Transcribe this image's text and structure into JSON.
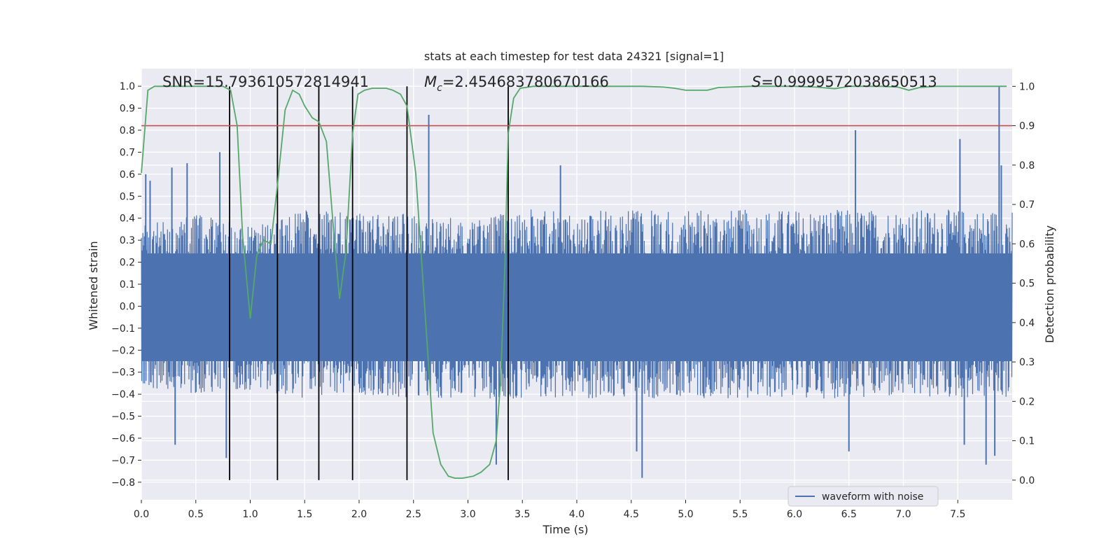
{
  "chart_data": {
    "type": "line",
    "title": "stats at each timestep for test data 24321 [signal=1]",
    "xlabel": "Time (s)",
    "ylabel": "Whitened strain",
    "y2label": "Detection probability",
    "xlim": [
      0.0,
      8.0
    ],
    "ylim": [
      -0.88,
      1.08
    ],
    "y2lim": [
      -0.05,
      1.045
    ],
    "x_ticks": [
      "0.0",
      "0.5",
      "1.0",
      "1.5",
      "2.0",
      "2.5",
      "3.0",
      "3.5",
      "4.0",
      "4.5",
      "5.0",
      "5.5",
      "6.0",
      "6.5",
      "7.0",
      "7.5"
    ],
    "y_ticks": [
      "1.0",
      "0.9",
      "0.8",
      "0.7",
      "0.6",
      "0.5",
      "0.4",
      "0.3",
      "0.2",
      "0.1",
      "0.0",
      "−0.1",
      "−0.2",
      "−0.3",
      "−0.4",
      "−0.5",
      "−0.6",
      "−0.7",
      "−0.8"
    ],
    "y2_ticks": [
      "1.0",
      "0.9",
      "0.8",
      "0.7",
      "0.6",
      "0.5",
      "0.4",
      "0.3",
      "0.2",
      "0.1",
      "0.0"
    ],
    "grid": true,
    "legend": {
      "placement": "lower-right",
      "entries": [
        "waveform with noise"
      ]
    },
    "annotations": {
      "snr": "SNR=15.793610572814941",
      "mc_symbol": "M",
      "mc_sub": "c",
      "mc_value": "=2.454683780670166",
      "s_symbol": "S",
      "s_value": "=0.9999572038650513"
    },
    "threshold": {
      "value": 0.9,
      "axis": "right"
    },
    "vertical_markers": [
      0.81,
      1.25,
      1.63,
      1.94,
      2.44,
      3.37
    ],
    "waveform": {
      "name": "waveform with noise",
      "envelope_upper": [
        [
          0.0,
          0.38
        ],
        [
          0.5,
          0.42
        ],
        [
          1.0,
          0.36
        ],
        [
          1.5,
          0.44
        ],
        [
          2.0,
          0.42
        ],
        [
          2.5,
          0.42
        ],
        [
          3.0,
          0.4
        ],
        [
          3.5,
          0.44
        ],
        [
          4.0,
          0.44
        ],
        [
          4.5,
          0.44
        ],
        [
          5.0,
          0.44
        ],
        [
          5.5,
          0.44
        ],
        [
          6.0,
          0.44
        ],
        [
          6.5,
          0.44
        ],
        [
          7.0,
          0.44
        ],
        [
          7.5,
          0.44
        ],
        [
          8.0,
          0.44
        ]
      ],
      "envelope_lower": [
        [
          0.0,
          -0.37
        ],
        [
          0.5,
          -0.4
        ],
        [
          1.0,
          -0.38
        ],
        [
          1.5,
          -0.42
        ],
        [
          2.0,
          -0.4
        ],
        [
          2.5,
          -0.42
        ],
        [
          3.0,
          -0.42
        ],
        [
          3.5,
          -0.42
        ],
        [
          4.0,
          -0.42
        ],
        [
          4.5,
          -0.42
        ],
        [
          5.0,
          -0.42
        ],
        [
          5.5,
          -0.42
        ],
        [
          6.0,
          -0.42
        ],
        [
          6.5,
          -0.42
        ],
        [
          7.0,
          -0.42
        ],
        [
          7.5,
          -0.42
        ],
        [
          8.0,
          -0.42
        ]
      ],
      "notable_spikes": [
        {
          "x": 0.04,
          "y": 0.6
        },
        {
          "x": 0.08,
          "y": 0.57
        },
        {
          "x": 0.28,
          "y": 0.63
        },
        {
          "x": 0.42,
          "y": 0.65
        },
        {
          "x": 0.72,
          "y": 0.7
        },
        {
          "x": 0.78,
          "y": -0.69
        },
        {
          "x": 2.64,
          "y": 0.87
        },
        {
          "x": 3.26,
          "y": -0.72
        },
        {
          "x": 3.85,
          "y": 0.64
        },
        {
          "x": 4.6,
          "y": -0.78
        },
        {
          "x": 4.55,
          "y": -0.66
        },
        {
          "x": 6.56,
          "y": 0.8
        },
        {
          "x": 6.5,
          "y": -0.66
        },
        {
          "x": 7.52,
          "y": 0.76
        },
        {
          "x": 7.56,
          "y": -0.63
        },
        {
          "x": 7.76,
          "y": -0.72
        },
        {
          "x": 7.88,
          "y": 1.0
        },
        {
          "x": 7.84,
          "y": -0.68
        },
        {
          "x": 7.9,
          "y": 0.64
        },
        {
          "x": 0.31,
          "y": -0.63
        }
      ]
    },
    "probability": {
      "name": "detection probability",
      "axis": "right",
      "points": [
        [
          0.0,
          0.78
        ],
        [
          0.06,
          0.99
        ],
        [
          0.12,
          1.0
        ],
        [
          0.2,
          1.0
        ],
        [
          0.4,
          1.0
        ],
        [
          0.6,
          1.0
        ],
        [
          0.75,
          1.0
        ],
        [
          0.82,
          0.99
        ],
        [
          0.88,
          0.9
        ],
        [
          0.93,
          0.62
        ],
        [
          1.0,
          0.41
        ],
        [
          1.06,
          0.57
        ],
        [
          1.12,
          0.61
        ],
        [
          1.19,
          0.6
        ],
        [
          1.25,
          0.75
        ],
        [
          1.32,
          0.94
        ],
        [
          1.39,
          0.99
        ],
        [
          1.45,
          0.98
        ],
        [
          1.5,
          0.95
        ],
        [
          1.57,
          0.92
        ],
        [
          1.63,
          0.91
        ],
        [
          1.7,
          0.86
        ],
        [
          1.77,
          0.62
        ],
        [
          1.82,
          0.46
        ],
        [
          1.88,
          0.58
        ],
        [
          1.94,
          0.88
        ],
        [
          1.99,
          0.98
        ],
        [
          2.05,
          0.99
        ],
        [
          2.12,
          0.995
        ],
        [
          2.18,
          0.995
        ],
        [
          2.25,
          0.995
        ],
        [
          2.31,
          0.99
        ],
        [
          2.38,
          0.98
        ],
        [
          2.44,
          0.95
        ],
        [
          2.52,
          0.78
        ],
        [
          2.6,
          0.45
        ],
        [
          2.68,
          0.12
        ],
        [
          2.75,
          0.04
        ],
        [
          2.82,
          0.01
        ],
        [
          2.88,
          0.005
        ],
        [
          2.95,
          0.005
        ],
        [
          3.05,
          0.01
        ],
        [
          3.12,
          0.02
        ],
        [
          3.2,
          0.04
        ],
        [
          3.26,
          0.1
        ],
        [
          3.3,
          0.25
        ],
        [
          3.34,
          0.55
        ],
        [
          3.37,
          0.88
        ],
        [
          3.42,
          0.97
        ],
        [
          3.48,
          0.995
        ],
        [
          3.6,
          1.0
        ],
        [
          3.8,
          1.0
        ],
        [
          4.0,
          1.0
        ],
        [
          4.2,
          1.0
        ],
        [
          4.4,
          1.0
        ],
        [
          4.6,
          1.0
        ],
        [
          4.8,
          0.998
        ],
        [
          4.9,
          0.995
        ],
        [
          5.0,
          0.99
        ],
        [
          5.2,
          0.99
        ],
        [
          5.3,
          0.997
        ],
        [
          5.6,
          1.0
        ],
        [
          5.8,
          1.0
        ],
        [
          6.0,
          1.0
        ],
        [
          6.2,
          0.998
        ],
        [
          6.37,
          0.994
        ],
        [
          6.5,
          1.0
        ],
        [
          6.8,
          1.0
        ],
        [
          6.95,
          0.998
        ],
        [
          7.05,
          0.99
        ],
        [
          7.15,
          0.997
        ],
        [
          7.3,
          1.0
        ],
        [
          7.6,
          1.0
        ],
        [
          7.95,
          1.0
        ]
      ]
    },
    "colors": {
      "background": "#eaeaf2",
      "grid": "#ffffff",
      "waveform": "#4c72b0",
      "probability": "#55a868",
      "threshold": "#c44e52",
      "markers": "#000000"
    }
  }
}
